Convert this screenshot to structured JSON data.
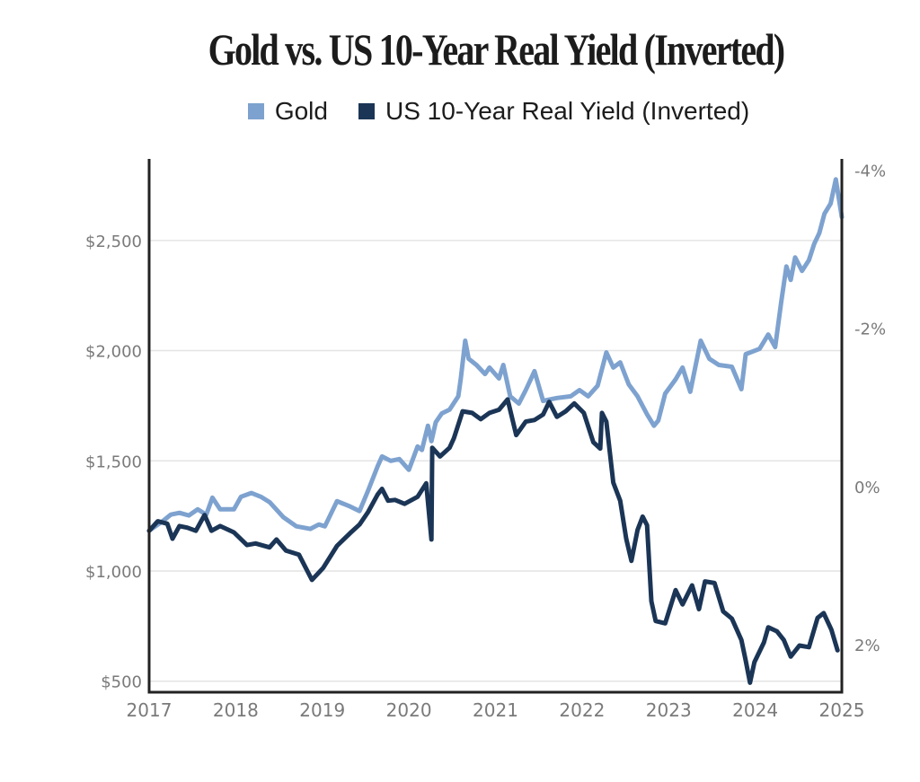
{
  "chart_data": {
    "type": "line",
    "title": "Gold vs. US 10-Year Real Yield (Inverted)",
    "xlabel": "",
    "ylabel_left": "",
    "ylabel_right": "",
    "legend_position": "top-center",
    "grid": true,
    "x_ticks": [
      "2017",
      "2018",
      "2019",
      "2020",
      "2021",
      "2022",
      "2023",
      "2024",
      "2025"
    ],
    "xlim": [
      2017,
      2025
    ],
    "y_left": {
      "ticks": [
        500,
        1000,
        1500,
        2000,
        2500
      ],
      "tick_labels": [
        "$500",
        "$1,000",
        "$1,500",
        "$2,000",
        "$2,500"
      ],
      "range": [
        450,
        2870
      ]
    },
    "y_right": {
      "inverted": true,
      "ticks": [
        -4,
        -2,
        0,
        2
      ],
      "tick_labels": [
        "-4%",
        "-2%",
        "0%",
        "2%"
      ],
      "range": [
        -4.14,
        2.6
      ]
    },
    "series": [
      {
        "name": "Gold",
        "axis": "left",
        "color": "#7ea2cf",
        "x": [
          2017.0,
          2017.15,
          2017.25,
          2017.35,
          2017.46,
          2017.56,
          2017.66,
          2017.73,
          2017.82,
          2017.98,
          2018.06,
          2018.18,
          2018.29,
          2018.39,
          2018.55,
          2018.7,
          2018.86,
          2018.96,
          2019.03,
          2019.17,
          2019.32,
          2019.43,
          2019.53,
          2019.64,
          2019.69,
          2019.79,
          2019.89,
          2020.0,
          2020.1,
          2020.15,
          2020.22,
          2020.26,
          2020.31,
          2020.38,
          2020.47,
          2020.57,
          2020.6,
          2020.65,
          2020.69,
          2020.78,
          2020.88,
          2020.93,
          2021.04,
          2021.09,
          2021.17,
          2021.27,
          2021.35,
          2021.45,
          2021.55,
          2021.71,
          2021.87,
          2021.97,
          2022.07,
          2022.18,
          2022.28,
          2022.36,
          2022.44,
          2022.54,
          2022.64,
          2022.75,
          2022.83,
          2022.88,
          2022.96,
          2023.08,
          2023.16,
          2023.25,
          2023.37,
          2023.47,
          2023.58,
          2023.73,
          2023.84,
          2023.89,
          2024.05,
          2024.15,
          2024.23,
          2024.3,
          2024.36,
          2024.41,
          2024.46,
          2024.54,
          2024.62,
          2024.68,
          2024.74,
          2024.8,
          2024.87,
          2024.93,
          2025.0
        ],
        "values": [
          1183,
          1224,
          1256,
          1264,
          1252,
          1280,
          1256,
          1333,
          1280,
          1280,
          1337,
          1354,
          1337,
          1313,
          1244,
          1203,
          1191,
          1211,
          1203,
          1317,
          1293,
          1272,
          1366,
          1476,
          1520,
          1500,
          1508,
          1459,
          1565,
          1549,
          1659,
          1589,
          1675,
          1715,
          1732,
          1793,
          1874,
          2045,
          1963,
          1935,
          1894,
          1923,
          1874,
          1935,
          1793,
          1760,
          1821,
          1907,
          1772,
          1785,
          1793,
          1821,
          1793,
          1841,
          1992,
          1923,
          1947,
          1846,
          1793,
          1711,
          1659,
          1683,
          1805,
          1870,
          1923,
          1813,
          2045,
          1963,
          1935,
          1927,
          1825,
          1984,
          2008,
          2073,
          2016,
          2220,
          2382,
          2321,
          2423,
          2362,
          2411,
          2484,
          2533,
          2622,
          2667,
          2777,
          2606
        ]
      },
      {
        "name": "US 10-Year Real Yield (Inverted)",
        "axis": "right",
        "color": "#1b3556",
        "x": [
          2017.0,
          2017.1,
          2017.21,
          2017.27,
          2017.35,
          2017.44,
          2017.54,
          2017.64,
          2017.72,
          2017.82,
          2017.98,
          2018.13,
          2018.23,
          2018.39,
          2018.47,
          2018.58,
          2018.73,
          2018.88,
          2019.01,
          2019.17,
          2019.32,
          2019.43,
          2019.53,
          2019.64,
          2019.69,
          2019.76,
          2019.84,
          2019.95,
          2020.1,
          2020.2,
          2020.26,
          2020.27,
          2020.36,
          2020.47,
          2020.52,
          2020.62,
          2020.73,
          2020.83,
          2020.93,
          2021.04,
          2021.14,
          2021.24,
          2021.35,
          2021.45,
          2021.55,
          2021.62,
          2021.71,
          2021.81,
          2021.91,
          2022.02,
          2022.13,
          2022.21,
          2022.23,
          2022.28,
          2022.36,
          2022.44,
          2022.51,
          2022.57,
          2022.64,
          2022.7,
          2022.75,
          2022.8,
          2022.85,
          2022.96,
          2023.08,
          2023.16,
          2023.27,
          2023.35,
          2023.42,
          2023.53,
          2023.63,
          2023.73,
          2023.84,
          2023.89,
          2023.94,
          2023.99,
          2024.1,
          2024.15,
          2024.25,
          2024.33,
          2024.41,
          2024.51,
          2024.62,
          2024.72,
          2024.79,
          2024.88,
          2024.95
        ],
        "values": [
          0.56,
          0.44,
          0.47,
          0.66,
          0.5,
          0.52,
          0.56,
          0.36,
          0.56,
          0.5,
          0.58,
          0.74,
          0.72,
          0.77,
          0.67,
          0.81,
          0.86,
          1.18,
          1.03,
          0.75,
          0.59,
          0.48,
          0.32,
          0.1,
          0.03,
          0.18,
          0.17,
          0.22,
          0.13,
          -0.04,
          0.67,
          -0.49,
          -0.38,
          -0.49,
          -0.61,
          -0.95,
          -0.93,
          -0.85,
          -0.93,
          -0.97,
          -1.1,
          -0.65,
          -0.82,
          -0.84,
          -0.91,
          -1.07,
          -0.88,
          -0.95,
          -1.05,
          -0.93,
          -0.56,
          -0.48,
          -0.93,
          -0.82,
          -0.05,
          0.18,
          0.66,
          0.94,
          0.55,
          0.38,
          0.49,
          1.45,
          1.7,
          1.73,
          1.31,
          1.49,
          1.25,
          1.55,
          1.2,
          1.22,
          1.58,
          1.67,
          1.94,
          2.2,
          2.48,
          2.22,
          1.97,
          1.78,
          1.83,
          1.94,
          2.15,
          2.01,
          2.03,
          1.66,
          1.6,
          1.81,
          2.07
        ]
      }
    ]
  }
}
